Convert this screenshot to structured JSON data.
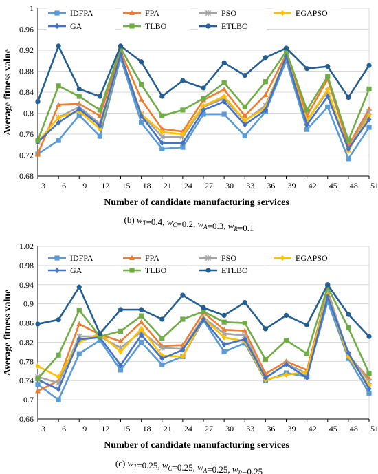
{
  "chart_data": [
    {
      "type": "line",
      "title": "",
      "caption": "(b) wT=0.4, wC=0.2, wA=0.3, wR=0.1",
      "caption_parts": [
        {
          "t": "(b) "
        },
        {
          "t": "w",
          "i": true
        },
        {
          "t": "T",
          "sub": true
        },
        {
          "t": "=0.4, "
        },
        {
          "t": "w",
          "i": true
        },
        {
          "t": "C",
          "sub": true
        },
        {
          "t": "=0.2, "
        },
        {
          "t": "w",
          "i": true
        },
        {
          "t": "A",
          "sub": true
        },
        {
          "t": "=0.3, "
        },
        {
          "t": "w",
          "i": true
        },
        {
          "t": "R",
          "sub": true
        },
        {
          "t": "=0.1"
        }
      ],
      "xlabel": "Number of candidate manufacturing services",
      "ylabel": "Average fitness value",
      "x": [
        3,
        6,
        9,
        12,
        15,
        18,
        21,
        24,
        27,
        30,
        33,
        36,
        39,
        42,
        45,
        48,
        51
      ],
      "ylim": [
        0.68,
        1.0
      ],
      "yticks": [
        "0.68",
        "0.72",
        "0.76",
        "0.8",
        "0.84",
        "0.88",
        "0.92",
        "0.96",
        "1"
      ],
      "grid": true,
      "legend": "top",
      "series": [
        {
          "name": "IDFPA",
          "color": "#5b9bd5",
          "marker": "square",
          "values": [
            0.722,
            0.748,
            0.796,
            0.756,
            0.905,
            0.782,
            0.732,
            0.735,
            0.798,
            0.798,
            0.757,
            0.803,
            0.9,
            0.769,
            0.812,
            0.713,
            0.773
          ]
        },
        {
          "name": "FPA",
          "color": "#ed7d31",
          "marker": "triangle",
          "values": [
            0.722,
            0.816,
            0.818,
            0.795,
            0.918,
            0.826,
            0.77,
            0.765,
            0.825,
            0.845,
            0.795,
            0.835,
            0.912,
            0.795,
            0.865,
            0.738,
            0.808
          ]
        },
        {
          "name": "PSO",
          "color": "#a5a5a5",
          "marker": "star",
          "values": [
            0.745,
            0.792,
            0.812,
            0.78,
            0.91,
            0.798,
            0.755,
            0.755,
            0.812,
            0.828,
            0.785,
            0.815,
            0.905,
            0.785,
            0.842,
            0.73,
            0.802
          ]
        },
        {
          "name": "EGAPSO",
          "color": "#ffc000",
          "marker": "diamond",
          "values": [
            0.745,
            0.792,
            0.804,
            0.77,
            0.912,
            0.798,
            0.764,
            0.76,
            0.814,
            0.832,
            0.786,
            0.81,
            0.908,
            0.786,
            0.845,
            0.728,
            0.795
          ]
        },
        {
          "name": "GA",
          "color": "#4472c4",
          "marker": "diamond",
          "values": [
            0.745,
            0.782,
            0.808,
            0.776,
            0.912,
            0.795,
            0.743,
            0.743,
            0.806,
            0.822,
            0.778,
            0.806,
            0.908,
            0.778,
            0.832,
            0.732,
            0.788
          ]
        },
        {
          "name": "TLBO",
          "color": "#70ad47",
          "marker": "square",
          "values": [
            0.748,
            0.852,
            0.832,
            0.806,
            0.924,
            0.855,
            0.795,
            0.806,
            0.828,
            0.858,
            0.812,
            0.86,
            0.918,
            0.806,
            0.87,
            0.748,
            0.846
          ]
        },
        {
          "name": "ETLBO",
          "color": "#255e91",
          "marker": "circle",
          "values": [
            0.822,
            0.928,
            0.846,
            0.832,
            0.928,
            0.898,
            0.832,
            0.862,
            0.848,
            0.896,
            0.872,
            0.906,
            0.924,
            0.885,
            0.889,
            0.83,
            0.891
          ]
        }
      ]
    },
    {
      "type": "line",
      "title": "",
      "caption": "(c) wT=0.25, wC=0.25, wA=0.25, wR=0.25",
      "caption_parts": [
        {
          "t": "(c) "
        },
        {
          "t": "w",
          "i": true
        },
        {
          "t": "T",
          "sub": true
        },
        {
          "t": "=0.25, "
        },
        {
          "t": "w",
          "i": true
        },
        {
          "t": "C",
          "sub": true
        },
        {
          "t": "=0.25, "
        },
        {
          "t": "w",
          "i": true
        },
        {
          "t": "A",
          "sub": true
        },
        {
          "t": "=0.25, "
        },
        {
          "t": "w",
          "i": true
        },
        {
          "t": "R",
          "sub": true
        },
        {
          "t": "=0.25"
        }
      ],
      "xlabel": "Number of candidate manufacturing services",
      "ylabel": "Average fitness value",
      "x": [
        3,
        6,
        9,
        12,
        15,
        18,
        21,
        24,
        27,
        30,
        33,
        36,
        39,
        42,
        45,
        48,
        51
      ],
      "ylim": [
        0.66,
        1.02
      ],
      "yticks": [
        "0.66",
        "0.7",
        "0.74",
        "0.78",
        "0.82",
        "0.86",
        "0.9",
        "0.94",
        "0.98",
        "1.02"
      ],
      "grid": true,
      "legend": "top",
      "series": [
        {
          "name": "IDFPA",
          "color": "#5b9bd5",
          "marker": "square",
          "values": [
            0.732,
            0.7,
            0.796,
            0.824,
            0.762,
            0.82,
            0.773,
            0.79,
            0.866,
            0.8,
            0.818,
            0.74,
            0.756,
            0.748,
            0.905,
            0.786,
            0.714
          ]
        },
        {
          "name": "FPA",
          "color": "#ed7d31",
          "marker": "triangle",
          "values": [
            0.718,
            0.74,
            0.858,
            0.836,
            0.822,
            0.862,
            0.812,
            0.814,
            0.882,
            0.846,
            0.844,
            0.754,
            0.78,
            0.762,
            0.928,
            0.792,
            0.744
          ]
        },
        {
          "name": "PSO",
          "color": "#a5a5a5",
          "marker": "star",
          "values": [
            0.748,
            0.735,
            0.832,
            0.832,
            0.808,
            0.842,
            0.808,
            0.806,
            0.872,
            0.838,
            0.834,
            0.745,
            0.775,
            0.755,
            0.925,
            0.795,
            0.738
          ]
        },
        {
          "name": "EGAPSO",
          "color": "#ffc000",
          "marker": "diamond",
          "values": [
            0.77,
            0.748,
            0.82,
            0.838,
            0.8,
            0.848,
            0.792,
            0.79,
            0.87,
            0.83,
            0.822,
            0.742,
            0.752,
            0.758,
            0.918,
            0.79,
            0.73
          ]
        },
        {
          "name": "GA",
          "color": "#4472c4",
          "marker": "diamond",
          "values": [
            0.742,
            0.722,
            0.826,
            0.83,
            0.772,
            0.835,
            0.786,
            0.804,
            0.868,
            0.815,
            0.826,
            0.746,
            0.774,
            0.746,
            0.915,
            0.798,
            0.723
          ]
        },
        {
          "name": "TLBO",
          "color": "#70ad47",
          "marker": "square",
          "values": [
            0.744,
            0.793,
            0.887,
            0.832,
            0.843,
            0.875,
            0.828,
            0.868,
            0.884,
            0.862,
            0.86,
            0.784,
            0.824,
            0.796,
            0.935,
            0.85,
            0.755
          ]
        },
        {
          "name": "ETLBO",
          "color": "#255e91",
          "marker": "circle",
          "values": [
            0.858,
            0.867,
            0.935,
            0.838,
            0.888,
            0.888,
            0.868,
            0.918,
            0.892,
            0.876,
            0.903,
            0.848,
            0.876,
            0.856,
            0.94,
            0.878,
            0.832
          ]
        }
      ]
    }
  ]
}
